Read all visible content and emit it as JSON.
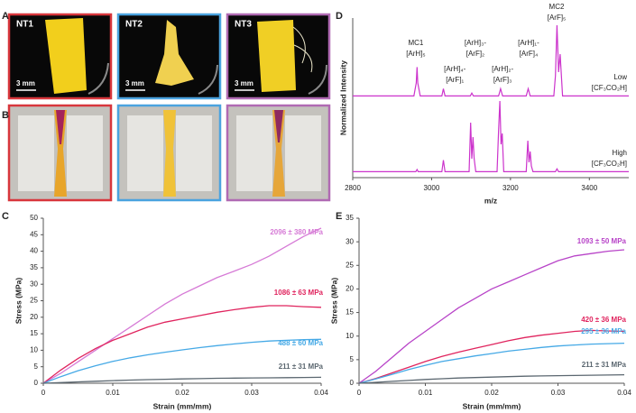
{
  "panel_labels": [
    "A",
    "B",
    "C",
    "D",
    "E"
  ],
  "photos": [
    {
      "label": "NT1",
      "scale": "3 mm"
    },
    {
      "label": "NT2",
      "scale": "3 mm"
    },
    {
      "label": "NT3",
      "scale": "3 mm"
    }
  ],
  "chart_data": [
    {
      "type": "line",
      "xlabel": "Strain (mm/mm)",
      "ylabel": "Stress (MPa)",
      "xlim": [
        0,
        0.04
      ],
      "xticks": [
        0,
        0.01,
        0.02,
        0.03,
        0.04
      ],
      "ylim": [
        0,
        50
      ],
      "yticks": [
        0,
        5,
        10,
        15,
        20,
        25,
        30,
        35,
        40,
        45,
        50
      ],
      "x": [
        0,
        0.0025,
        0.005,
        0.0075,
        0.01,
        0.0125,
        0.015,
        0.0175,
        0.02,
        0.0225,
        0.025,
        0.0275,
        0.03,
        0.0325,
        0.035,
        0.0375,
        0.04
      ],
      "series": [
        {
          "name": "2096 ± 380 MPa",
          "color": "#d67ad6",
          "values": [
            0,
            3,
            6.5,
            10,
            13.5,
            17,
            20.5,
            24,
            27,
            29.5,
            32,
            34,
            36,
            38.5,
            41.5,
            44.5,
            47
          ]
        },
        {
          "name": "1086 ± 63 MPa",
          "color": "#e0245e",
          "values": [
            0,
            4,
            7.5,
            10.5,
            13,
            15,
            17,
            18.5,
            19.5,
            20.5,
            21.5,
            22.3,
            23,
            23.5,
            23.5,
            23.2,
            23
          ]
        },
        {
          "name": "488 ± 60 MPa",
          "color": "#45a9e6",
          "values": [
            0,
            2,
            3.8,
            5.3,
            6.6,
            7.7,
            8.6,
            9.4,
            10.1,
            10.8,
            11.4,
            11.9,
            12.4,
            12.8,
            13,
            13.2,
            13.3
          ]
        },
        {
          "name": "211 ± 31 MPa",
          "color": "#5b6770",
          "values": [
            0,
            0.2,
            0.4,
            0.6,
            0.8,
            0.95,
            1.1,
            1.2,
            1.3,
            1.4,
            1.5,
            1.55,
            1.6,
            1.65,
            1.7,
            1.75,
            1.8
          ]
        }
      ]
    },
    {
      "type": "spectrum",
      "xlabel": "m/z",
      "ylabel": "Normalized Intensity",
      "xlim": [
        2800,
        3500
      ],
      "xticks": [
        2800,
        3000,
        3200,
        3400
      ],
      "ylim": [
        0,
        1
      ],
      "annotations": [
        {
          "x": 2960,
          "lines": [
            "MC1",
            "[ArH]₅"
          ]
        },
        {
          "x": 3059,
          "lines": [
            "[ArH]₄-",
            "[ArF]₁"
          ]
        },
        {
          "x": 3111,
          "lines": [
            "[ArH]₃-",
            "[ArF]₂"
          ]
        },
        {
          "x": 3180,
          "lines": [
            "[ArH]₂-",
            "[ArF]₃"
          ]
        },
        {
          "x": 3246,
          "lines": [
            "[ArH]₁-",
            "[ArF]₄"
          ]
        },
        {
          "x": 3317,
          "lines": [
            "MC2",
            "[ArF]₅"
          ]
        }
      ],
      "series": [
        {
          "name": "Low",
          "condition": "[CF₃CO₂H]",
          "color": "#cc33cc",
          "x": [
            2800,
            2955,
            2961,
            2963,
            2965,
            2971,
            3026,
            3030,
            3034,
            3098,
            3102,
            3106,
            3170,
            3175,
            3180,
            3240,
            3245,
            3250,
            3310,
            3314,
            3318,
            3322,
            3326,
            3332,
            3500
          ],
          "values": [
            0.02,
            0.02,
            0.2,
            0.42,
            0.2,
            0.02,
            0.02,
            0.12,
            0.02,
            0.02,
            0.06,
            0.02,
            0.02,
            0.12,
            0.02,
            0.02,
            0.12,
            0.02,
            0.02,
            0.3,
            1.0,
            0.35,
            0.6,
            0.02,
            0.02
          ]
        },
        {
          "name": "High",
          "condition": "[CF₃CO₂H]",
          "color": "#cc33cc",
          "x": [
            2800,
            2960,
            2963,
            2966,
            3026,
            3030,
            3034,
            3095,
            3099,
            3102,
            3105,
            3108,
            3112,
            3166,
            3170,
            3173,
            3176,
            3179,
            3183,
            3240,
            3244,
            3247,
            3250,
            3253,
            3257,
            3314,
            3318,
            3322,
            3500
          ],
          "values": [
            0.02,
            0.02,
            0.05,
            0.02,
            0.02,
            0.18,
            0.02,
            0.02,
            0.7,
            0.2,
            0.5,
            0.2,
            0.02,
            0.02,
            0.6,
            1.0,
            0.4,
            0.55,
            0.02,
            0.02,
            0.45,
            0.15,
            0.3,
            0.1,
            0.02,
            0.02,
            0.06,
            0.02,
            0.02
          ]
        }
      ]
    },
    {
      "type": "line",
      "xlabel": "Strain (mm/mm)",
      "ylabel": "Stress (MPa)",
      "xlim": [
        0,
        0.04
      ],
      "xticks": [
        0,
        0.01,
        0.02,
        0.03,
        0.04
      ],
      "ylim": [
        0,
        35
      ],
      "yticks": [
        0,
        5,
        10,
        15,
        20,
        25,
        30,
        35
      ],
      "x": [
        0,
        0.0025,
        0.005,
        0.0075,
        0.01,
        0.0125,
        0.015,
        0.0175,
        0.02,
        0.0225,
        0.025,
        0.0275,
        0.03,
        0.0325,
        0.035,
        0.0375,
        0.04
      ],
      "series": [
        {
          "name": "1093 ± 50 MPa",
          "color": "#b844c8",
          "values": [
            0,
            2.5,
            5.5,
            8.5,
            11,
            13.5,
            16,
            18,
            20,
            21.5,
            23,
            24.5,
            26,
            27,
            27.5,
            28,
            28.3
          ]
        },
        {
          "name": "420 ± 36 MPa",
          "color": "#e0245e",
          "values": [
            0,
            1,
            2.2,
            3.4,
            4.6,
            5.7,
            6.6,
            7.4,
            8.2,
            9,
            9.7,
            10.2,
            10.6,
            11,
            11.2,
            11.1,
            11
          ]
        },
        {
          "name": "295 ± 36 MPa",
          "color": "#45a9e6",
          "values": [
            0,
            0.9,
            1.9,
            2.9,
            3.8,
            4.6,
            5.2,
            5.8,
            6.3,
            6.8,
            7.2,
            7.6,
            7.9,
            8.1,
            8.3,
            8.4,
            8.5
          ]
        },
        {
          "name": "211 ± 31 MPa",
          "color": "#5b6770",
          "values": [
            0,
            0.2,
            0.4,
            0.6,
            0.8,
            0.95,
            1.1,
            1.2,
            1.3,
            1.4,
            1.5,
            1.55,
            1.6,
            1.65,
            1.7,
            1.75,
            1.8
          ]
        }
      ]
    }
  ]
}
